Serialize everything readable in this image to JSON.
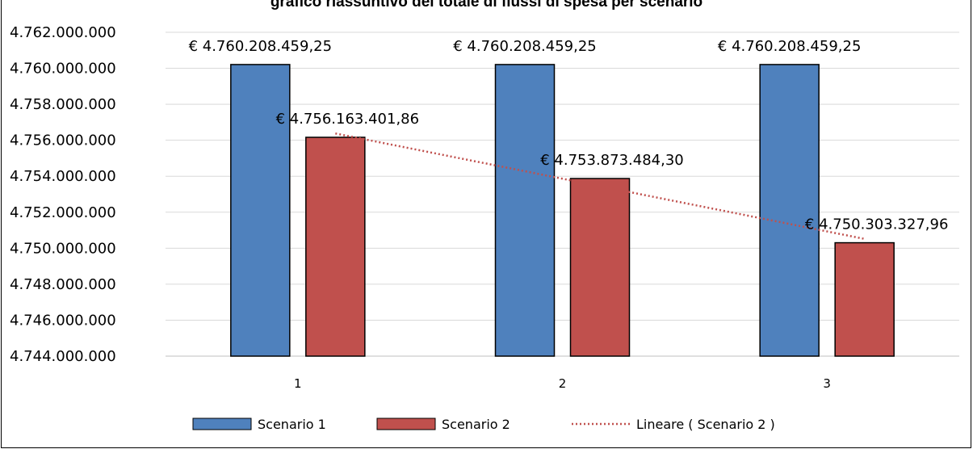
{
  "chart_data": {
    "type": "bar",
    "title": "grafico riassuntivo del totale di flussi di spesa per scenario",
    "categories": [
      "1",
      "2",
      "3"
    ],
    "series": [
      {
        "name": "Scenario 1",
        "values": [
          4760208459.25,
          4760208459.25,
          4760208459.25
        ],
        "labels": [
          "€ 4.760.208.459,25",
          "€ 4.760.208.459,25",
          "€ 4.760.208.459,25"
        ],
        "color": "#4F81BD"
      },
      {
        "name": "Scenario 2",
        "values": [
          4756163401.86,
          4753873484.3,
          4750303327.96
        ],
        "labels": [
          "€ 4.756.163.401,86",
          "€ 4.753.873.484,30",
          "€ 4.750.303.327,96"
        ],
        "color": "#C0504D"
      }
    ],
    "trendline": {
      "name": "Lineare ( Scenario 2 )",
      "series": "Scenario 2",
      "type": "linear",
      "color": "#C0504D",
      "style": "dotted"
    },
    "ylim": [
      4744000000,
      4762000000
    ],
    "yticks": [
      {
        "value": 4744000000,
        "label": "4.744.000.000"
      },
      {
        "value": 4746000000,
        "label": "4.746.000.000"
      },
      {
        "value": 4748000000,
        "label": "4.748.000.000"
      },
      {
        "value": 4750000000,
        "label": "4.750.000.000"
      },
      {
        "value": 4752000000,
        "label": "4.752.000.000"
      },
      {
        "value": 4754000000,
        "label": "4.754.000.000"
      },
      {
        "value": 4756000000,
        "label": "4.756.000.000"
      },
      {
        "value": 4758000000,
        "label": "4.758.000.000"
      },
      {
        "value": 4760000000,
        "label": "4.760.000.000"
      },
      {
        "value": 4762000000,
        "label": "4.762.000.000"
      }
    ],
    "xlabel": "",
    "ylabel": "",
    "grid": true,
    "legend_position": "bottom",
    "colors": {
      "gridline": "#D9D9D9",
      "axis": "#BFBFBF",
      "border": "#000000"
    }
  }
}
